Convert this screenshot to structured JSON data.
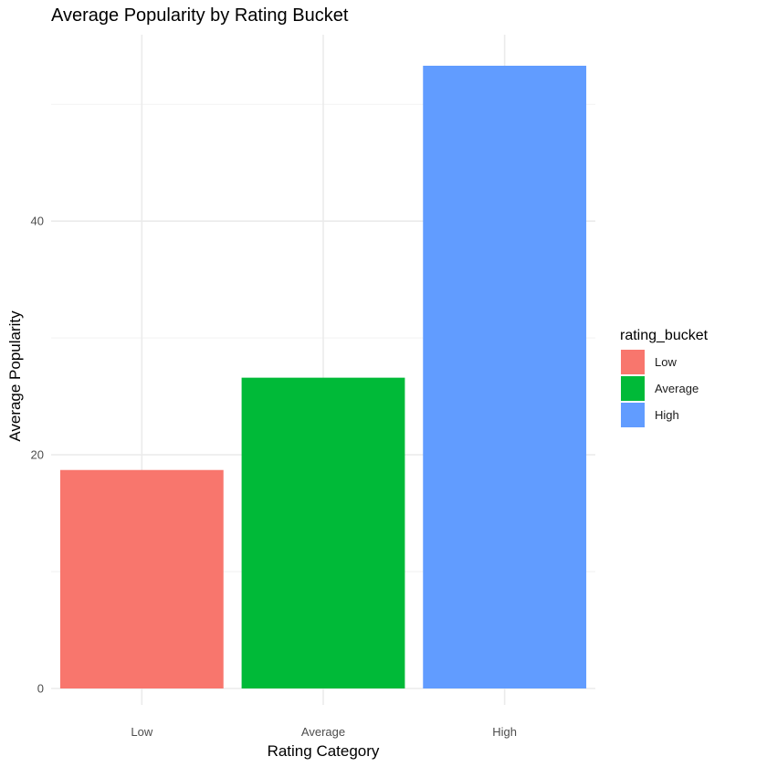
{
  "chart_data": {
    "type": "bar",
    "title": "Average Popularity by Rating Bucket",
    "xlabel": "Rating Category",
    "ylabel": "Average Popularity",
    "categories": [
      "Low",
      "Average",
      "High"
    ],
    "values": [
      18.7,
      26.6,
      53.3
    ],
    "colors": [
      "#F8766D",
      "#00BA38",
      "#619CFF"
    ],
    "ylim": [
      0,
      56.2
    ],
    "yticks": [
      0,
      20,
      40
    ],
    "y_minor_gridlines": [
      10,
      30,
      50
    ],
    "grid": true,
    "legend": {
      "title": "rating_bucket",
      "position": "right",
      "entries": [
        "Low",
        "Average",
        "High"
      ]
    }
  }
}
